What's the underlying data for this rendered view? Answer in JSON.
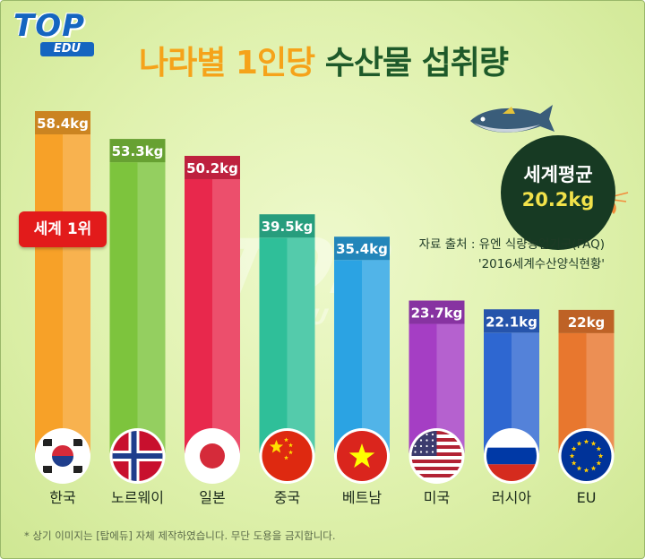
{
  "logo": {
    "top": "TOP",
    "edu": "EDU"
  },
  "title": {
    "part1": "나라별 1인당",
    "part2": "수산물 섭취량"
  },
  "world_average": {
    "label": "세계평균",
    "value": "20.2kg"
  },
  "source": {
    "line1": "자료 출처 : 유엔 식량농업기구(FAQ)",
    "line2": "'2016세계수산양식현황'"
  },
  "badge": "세계 1위",
  "note": "* 상기 이미지는 [탑에듀] 자체 제작하였습니다. 무단 도용을 금지합니다.",
  "colors": [
    "#f7a128",
    "#7dc43d",
    "#e8284c",
    "#2fbf99",
    "#2ba3e3",
    "#a53ec4",
    "#2e67d1",
    "#e8772e"
  ],
  "flag_icons": [
    "korea-flag-icon",
    "norway-flag-icon",
    "japan-flag-icon",
    "china-flag-icon",
    "vietnam-flag-icon",
    "usa-flag-icon",
    "russia-flag-icon",
    "eu-flag-icon"
  ],
  "chart_data": {
    "type": "bar",
    "categories": [
      "한국",
      "노르웨이",
      "일본",
      "중국",
      "베트남",
      "미국",
      "러시아",
      "EU"
    ],
    "values": [
      58.4,
      53.3,
      50.2,
      39.5,
      35.4,
      23.7,
      22.1,
      22
    ],
    "value_labels": [
      "58.4kg",
      "53.3kg",
      "50.2kg",
      "39.5kg",
      "35.4kg",
      "23.7kg",
      "22.1kg",
      "22kg"
    ],
    "unit": "kg",
    "ylim": [
      0,
      60
    ],
    "grid": false,
    "legend": "none"
  }
}
